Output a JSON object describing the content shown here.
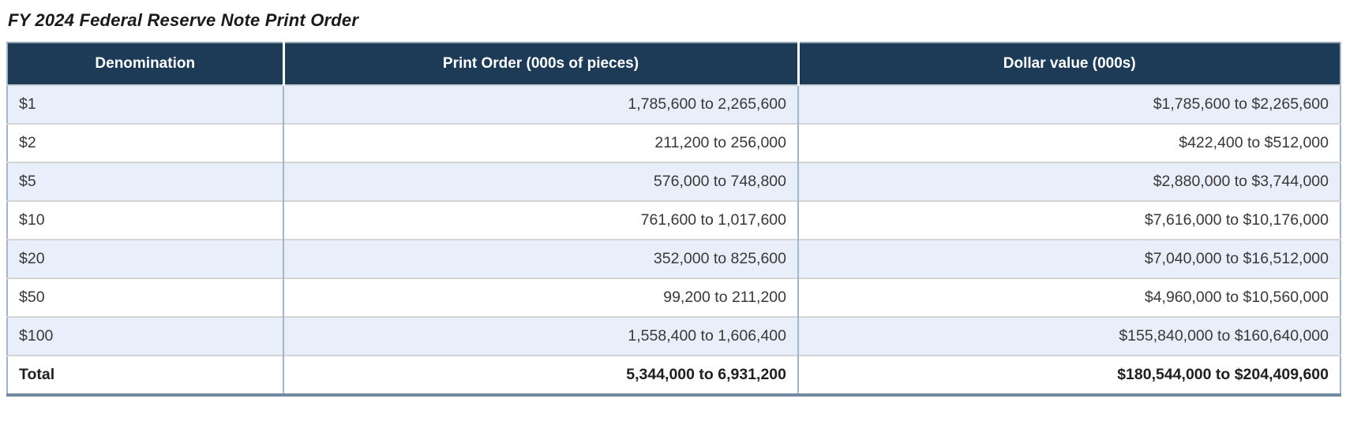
{
  "title": "FY 2024 Federal Reserve Note Print Order",
  "table": {
    "headers": [
      "Denomination",
      "Print Order (000s of pieces)",
      "Dollar value (000s)"
    ],
    "rows": [
      {
        "denomination": "$1",
        "print_order": "1,785,600 to 2,265,600",
        "dollar_value": "$1,785,600 to $2,265,600"
      },
      {
        "denomination": "$2",
        "print_order": "211,200 to 256,000",
        "dollar_value": "$422,400 to $512,000"
      },
      {
        "denomination": "$5",
        "print_order": "576,000 to 748,800",
        "dollar_value": "$2,880,000 to $3,744,000"
      },
      {
        "denomination": "$10",
        "print_order": "761,600 to 1,017,600",
        "dollar_value": "$7,616,000 to $10,176,000"
      },
      {
        "denomination": "$20",
        "print_order": "352,000 to 825,600",
        "dollar_value": "$7,040,000 to $16,512,000"
      },
      {
        "denomination": "$50",
        "print_order": "99,200 to 211,200",
        "dollar_value": "$4,960,000 to $10,560,000"
      },
      {
        "denomination": "$100",
        "print_order": "1,558,400 to 1,606,400",
        "dollar_value": "$155,840,000 to $160,640,000"
      }
    ],
    "total": {
      "denomination": "Total",
      "print_order": "5,344,000 to 6,931,200",
      "dollar_value": "$180,544,000 to $204,409,600"
    }
  },
  "colors": {
    "header_bg": "#1d3a57",
    "header_text": "#ffffff",
    "row_alt_bg": "#e9effa",
    "row_bg": "#ffffff",
    "body_text": "#383838",
    "outer_border": "#a5b5c6",
    "bottom_border": "#7289a3",
    "column_divider": "#a3b6c9",
    "row_divider": "#d4d4d4"
  }
}
